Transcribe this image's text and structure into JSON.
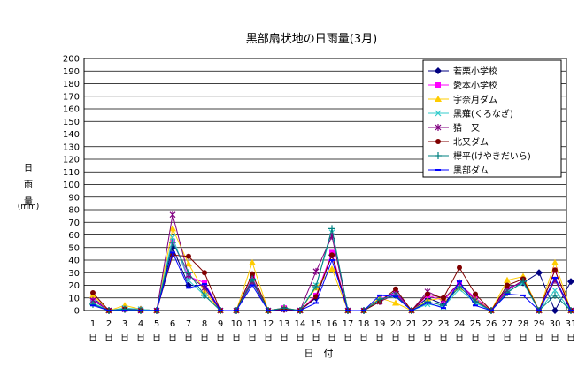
{
  "chart_data": {
    "type": "line",
    "title": "黒部扇状地の日雨量(3月)",
    "ylabel_chars": [
      "日",
      "雨",
      "量"
    ],
    "yunit": "(mm)",
    "xlabel": "日　付",
    "x_unit_char": "日",
    "ylim": [
      0,
      200
    ],
    "ytick_step": 10,
    "grid": true,
    "legend_position": "top-right",
    "categories": [
      "1",
      "2",
      "3",
      "4",
      "5",
      "6",
      "7",
      "8",
      "9",
      "10",
      "11",
      "12",
      "13",
      "14",
      "15",
      "16",
      "17",
      "18",
      "19",
      "20",
      "21",
      "22",
      "23",
      "24",
      "25",
      "26",
      "27",
      "28",
      "29",
      "30",
      "31"
    ],
    "series": [
      {
        "name": "若栗小学校",
        "color": "#000080",
        "marker": "diamond",
        "values": [
          10,
          0,
          1,
          1,
          0,
          50,
          20,
          20,
          0,
          0,
          24,
          0,
          1,
          0,
          10,
          44,
          0,
          0,
          8,
          15,
          0,
          10,
          5,
          20,
          10,
          0,
          18,
          22,
          30,
          0,
          23
        ]
      },
      {
        "name": "愛本小学校",
        "color": "#ff00ff",
        "marker": "square",
        "values": [
          9,
          0,
          1,
          0,
          0,
          55,
          27,
          22,
          0,
          0,
          26,
          0,
          2,
          0,
          12,
          46,
          0,
          0,
          9,
          14,
          0,
          12,
          8,
          21,
          10,
          0,
          17,
          23,
          0,
          32,
          0
        ]
      },
      {
        "name": "宇奈月ダム",
        "color": "#ffcc00",
        "marker": "triangle",
        "values": [
          12,
          0,
          4,
          1,
          0,
          65,
          37,
          15,
          0,
          0,
          38,
          0,
          2,
          0,
          18,
          33,
          0,
          0,
          10,
          6,
          0,
          8,
          10,
          18,
          9,
          0,
          24,
          27,
          0,
          38,
          0
        ]
      },
      {
        "name": "黒薙(くろなぎ)",
        "color": "#33cccc",
        "marker": "x",
        "values": [
          6,
          0,
          2,
          1,
          0,
          58,
          24,
          12,
          0,
          0,
          22,
          0,
          1,
          0,
          20,
          62,
          0,
          0,
          8,
          12,
          0,
          5,
          3,
          17,
          6,
          0,
          15,
          22,
          0,
          16,
          0
        ]
      },
      {
        "name": "猫　又",
        "color": "#800080",
        "marker": "star",
        "values": [
          8,
          0,
          1,
          0,
          0,
          76,
          28,
          18,
          0,
          0,
          23,
          0,
          1,
          0,
          31,
          59,
          0,
          0,
          7,
          13,
          0,
          15,
          9,
          22,
          8,
          0,
          16,
          24,
          0,
          24,
          0
        ]
      },
      {
        "name": "北又ダム",
        "color": "#800000",
        "marker": "circle",
        "values": [
          14,
          0,
          1,
          0,
          0,
          44,
          43,
          30,
          0,
          0,
          29,
          0,
          1,
          0,
          11,
          44,
          0,
          0,
          7,
          17,
          0,
          13,
          10,
          34,
          13,
          0,
          20,
          25,
          0,
          32,
          0
        ]
      },
      {
        "name": "欅平(けやきだいら)",
        "color": "#008080",
        "marker": "plus",
        "values": [
          5,
          0,
          1,
          0,
          0,
          54,
          30,
          12,
          0,
          0,
          25,
          0,
          2,
          0,
          19,
          65,
          0,
          0,
          9,
          12,
          0,
          7,
          4,
          19,
          7,
          0,
          14,
          23,
          0,
          12,
          0
        ]
      },
      {
        "name": "黒部ダム",
        "color": "#0000ff",
        "marker": "dash",
        "values": [
          4,
          0,
          0,
          0,
          0,
          46,
          18,
          21,
          0,
          0,
          20,
          0,
          0,
          0,
          6,
          40,
          0,
          0,
          12,
          11,
          0,
          6,
          2,
          23,
          4,
          0,
          13,
          12,
          0,
          26,
          0
        ]
      }
    ]
  }
}
